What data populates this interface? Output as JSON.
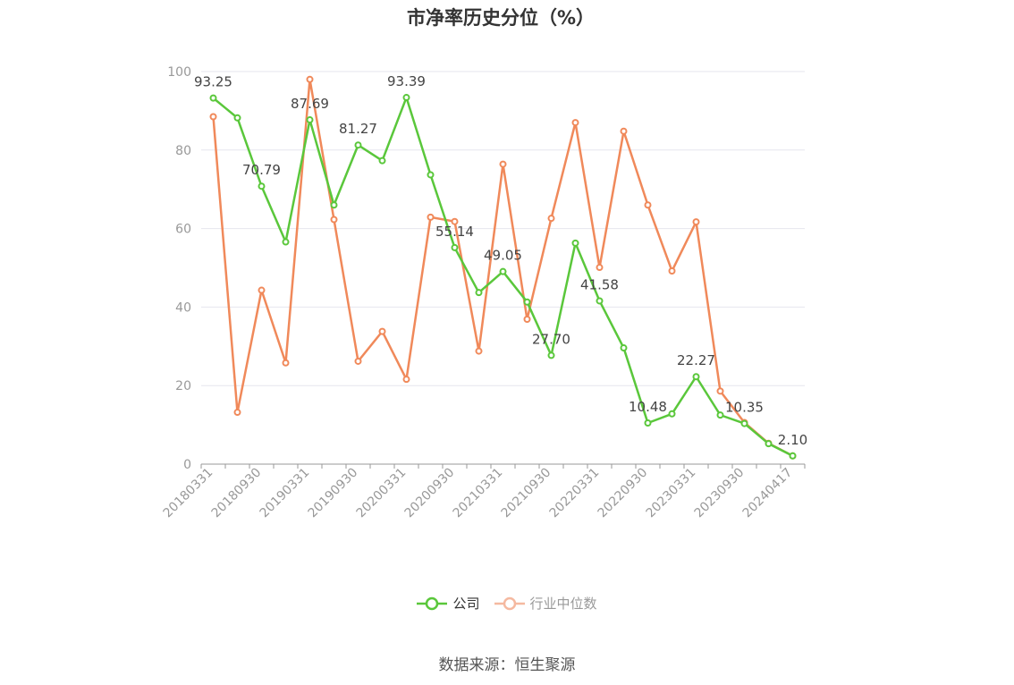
{
  "source_text": "数据来源：恒生聚源",
  "colors": {
    "company": "#5ac73b",
    "industry": "#f0895a",
    "industry_legend": "#f5b9a0",
    "grid": "#e6e6ee",
    "axis": "#999999"
  },
  "chart_data": {
    "type": "line",
    "title": "市净率历史分位（%）",
    "xlabel": "",
    "ylabel": "",
    "ylim": [
      0,
      100
    ],
    "yticks": [
      0,
      20,
      40,
      60,
      80,
      100
    ],
    "grid": true,
    "legend_position": "bottom",
    "x": [
      "20180331",
      "20180630",
      "20180930",
      "20181231",
      "20190331",
      "20190630",
      "20190930",
      "20191231",
      "20200331",
      "20200630",
      "20200930",
      "20201231",
      "20210331",
      "20210630",
      "20210930",
      "20211231",
      "20220331",
      "20220630",
      "20220930",
      "20221231",
      "20230331",
      "20230630",
      "20230930",
      "20231231",
      "20240417"
    ],
    "xtick_labels": [
      "20180331",
      "20180930",
      "20190331",
      "20190930",
      "20200331",
      "20200930",
      "20210331",
      "20210930",
      "20220331",
      "20220930",
      "20230331",
      "20230930",
      "20240417"
    ],
    "series": [
      {
        "name": "公司",
        "values": [
          93.25,
          88.2,
          70.79,
          56.6,
          87.69,
          66.0,
          81.27,
          77.3,
          93.39,
          73.7,
          55.14,
          43.7,
          49.05,
          41.3,
          27.7,
          56.3,
          41.58,
          29.6,
          10.48,
          12.8,
          22.27,
          12.5,
          10.35,
          5.2,
          2.1
        ],
        "labels": [
          "93.25",
          null,
          "70.79",
          null,
          "87.69",
          null,
          "81.27",
          null,
          "93.39",
          null,
          "55.14",
          null,
          "49.05",
          null,
          "27.70",
          null,
          "41.58",
          null,
          "10.48",
          null,
          "22.27",
          null,
          "10.35",
          null,
          "2.10"
        ]
      },
      {
        "name": "行业中位数",
        "values": [
          88.5,
          13.2,
          44.3,
          25.8,
          98.0,
          62.3,
          26.2,
          33.8,
          21.6,
          62.9,
          61.8,
          28.8,
          76.4,
          36.9,
          62.6,
          87.0,
          50.1,
          84.8,
          66.0,
          49.2,
          61.7,
          18.6,
          10.6,
          5.3,
          2.1
        ]
      }
    ]
  }
}
